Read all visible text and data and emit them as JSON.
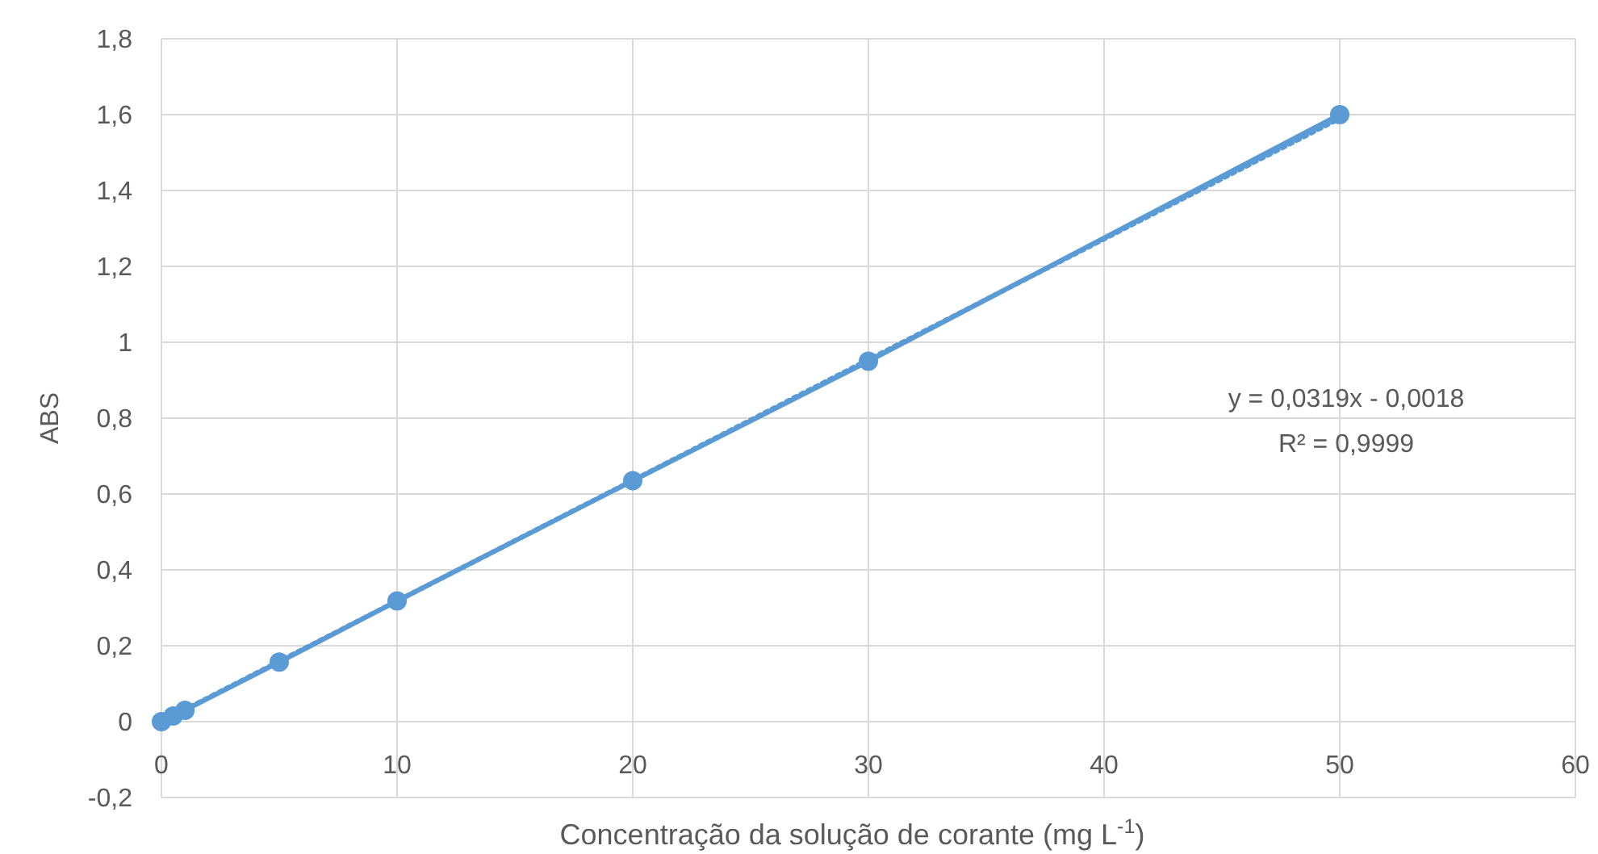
{
  "chart_data": {
    "type": "line",
    "xlabel": "Concentração da solução de corante (mg L$^{-1}$)",
    "ylabel": "ABS",
    "xlim": [
      0,
      60
    ],
    "xticks": [
      0,
      10,
      20,
      30,
      40,
      50,
      60
    ],
    "ylim": [
      -0.2,
      1.8
    ],
    "yticks": [
      {
        "value": -0.2,
        "label": "-0,2"
      },
      0,
      {
        "value": 0.2,
        "label": "0,2"
      },
      {
        "value": 0.4,
        "label": "0,4"
      },
      {
        "value": 0.6,
        "label": "0,6"
      },
      {
        "value": 0.8,
        "label": "0,8"
      },
      1,
      {
        "value": 1.2,
        "label": "1,2"
      },
      {
        "value": 1.4,
        "label": "1,4"
      },
      {
        "value": 1.6,
        "label": "1,6"
      },
      {
        "value": 1.8,
        "label": "1,8"
      }
    ],
    "grid": true,
    "marker": "circle",
    "series": [
      {
        "color": "#5b9bd5",
        "x": [
          0,
          0.5,
          1,
          5,
          10,
          20,
          30,
          50
        ],
        "values": [
          0,
          0.015,
          0.03,
          0.157,
          0.318,
          0.635,
          0.95,
          1.6
        ]
      },
      {
        "color": "#5b9bd5",
        "x": [
          0,
          50
        ],
        "values": [
          0,
          1.59
        ],
        "marker": "none",
        "line_style": "dotted"
      }
    ],
    "annotations": [
      "y = 0,0319x - 0,0018",
      "R² = 0,9999"
    ]
  }
}
